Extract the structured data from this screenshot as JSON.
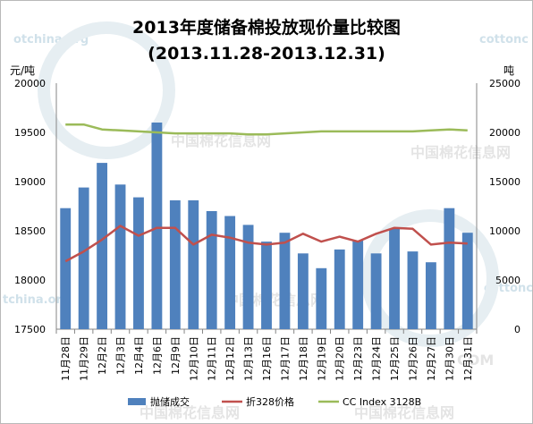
{
  "chart_data": {
    "type": "bar",
    "title": "2013年度储备棉投放现价量比较图",
    "subtitle": "(2013.11.28-2013.12.31)",
    "ylabel_left": "元/吨",
    "ylabel_right": "吨",
    "ylim_left": [
      17500,
      20000
    ],
    "ylim_right": [
      0,
      25000
    ],
    "yticks_left": [
      "20000",
      "19500",
      "19000",
      "18500",
      "18000",
      "17500"
    ],
    "yticks_right": [
      "25000",
      "20000",
      "15000",
      "10000",
      "5000",
      "0"
    ],
    "categories": [
      "11月28日",
      "11月29日",
      "12月2日",
      "12月3日",
      "12月4日",
      "12月6日",
      "12月9日",
      "12月10日",
      "12月11日",
      "12月12日",
      "12月13日",
      "12月16日",
      "12月17日",
      "12月18日",
      "12月19日",
      "12月20日",
      "12月23日",
      "12月24日",
      "12月25日",
      "12月26日",
      "12月27日",
      "12月30日",
      "12月31日"
    ],
    "series": [
      {
        "name": "抛储成交",
        "type": "bar",
        "axis": "right",
        "color": "#4f81bd",
        "values": [
          12300,
          14400,
          16900,
          14700,
          13400,
          21000,
          13100,
          13100,
          12000,
          11500,
          10600,
          8900,
          9800,
          7700,
          6200,
          8100,
          9000,
          7700,
          10200,
          7900,
          6800,
          12300,
          9800
        ]
      },
      {
        "name": "折328价格",
        "type": "line",
        "axis": "left",
        "color": "#c0504d",
        "values": [
          18190,
          18290,
          18410,
          18550,
          18450,
          18530,
          18530,
          18360,
          18460,
          18430,
          18380,
          18360,
          18380,
          18470,
          18390,
          18440,
          18390,
          18470,
          18530,
          18520,
          18360,
          18380,
          18370
        ]
      },
      {
        "name": "CC Index 3128B",
        "type": "line",
        "axis": "left",
        "color": "#9bbb59",
        "values": [
          19580,
          19580,
          19530,
          19520,
          19510,
          19500,
          19490,
          19490,
          19490,
          19490,
          19480,
          19480,
          19490,
          19500,
          19510,
          19510,
          19510,
          19510,
          19510,
          19510,
          19520,
          19530,
          19520
        ]
      }
    ],
    "legend_position": "bottom",
    "grid": false
  },
  "watermarks": [
    "otchina.org",
    "cottonc",
    "中国棉花信息网",
    "中国棉花信息网",
    "tchina.org",
    "cottonc",
    "中国棉花信息网",
    "中国棉花信息网",
    "COM",
    "中国棉花信息网"
  ]
}
